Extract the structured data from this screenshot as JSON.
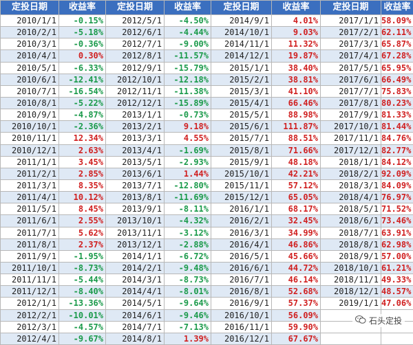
{
  "headers": [
    "定投日期",
    "收益率",
    "定投日期",
    "收益率",
    "定投日期",
    "收益率",
    "定投日期",
    "收益率"
  ],
  "columns": [
    [
      [
        "2010/1/1",
        "-0.15%"
      ],
      [
        "2010/2/1",
        "-5.18%"
      ],
      [
        "2010/3/1",
        "-0.36%"
      ],
      [
        "2010/4/1",
        "0.30%"
      ],
      [
        "2010/5/1",
        "-6.33%"
      ],
      [
        "2010/6/1",
        "-12.41%"
      ],
      [
        "2010/7/1",
        "-16.54%"
      ],
      [
        "2010/8/1",
        "-5.22%"
      ],
      [
        "2010/9/1",
        "-4.87%"
      ],
      [
        "2010/10/1",
        "-2.36%"
      ],
      [
        "2010/11/1",
        "12.34%"
      ],
      [
        "2010/12/1",
        "2.63%"
      ],
      [
        "2011/1/1",
        "3.45%"
      ],
      [
        "2011/2/1",
        "2.85%"
      ],
      [
        "2011/3/1",
        "8.35%"
      ],
      [
        "2011/4/1",
        "10.12%"
      ],
      [
        "2011/5/1",
        "8.45%"
      ],
      [
        "2011/6/1",
        "2.55%"
      ],
      [
        "2011/7/1",
        "5.62%"
      ],
      [
        "2011/8/1",
        "2.37%"
      ],
      [
        "2011/9/1",
        "-1.95%"
      ],
      [
        "2011/10/1",
        "-8.73%"
      ],
      [
        "2011/11/1",
        "-5.44%"
      ],
      [
        "2011/12/1",
        "-8.40%"
      ],
      [
        "2012/1/1",
        "-13.36%"
      ],
      [
        "2012/2/1",
        "-10.01%"
      ],
      [
        "2012/3/1",
        "-4.57%"
      ],
      [
        "2012/4/1",
        "-9.67%"
      ]
    ],
    [
      [
        "2012/5/1",
        "-4.50%"
      ],
      [
        "2012/6/1",
        "-4.44%"
      ],
      [
        "2012/7/1",
        "-9.00%"
      ],
      [
        "2012/8/1",
        "-11.57%"
      ],
      [
        "2012/9/1",
        "-15.79%"
      ],
      [
        "2012/10/1",
        "-12.18%"
      ],
      [
        "2012/11/1",
        "-11.38%"
      ],
      [
        "2012/12/1",
        "-15.89%"
      ],
      [
        "2013/1/1",
        "-0.73%"
      ],
      [
        "2013/2/1",
        "9.18%"
      ],
      [
        "2013/3/1",
        "4.55%"
      ],
      [
        "2013/4/1",
        "-1.69%"
      ],
      [
        "2013/5/1",
        "-2.93%"
      ],
      [
        "2013/6/1",
        "1.44%"
      ],
      [
        "2013/7/1",
        "-12.80%"
      ],
      [
        "2013/8/1",
        "-11.69%"
      ],
      [
        "2013/9/1",
        "-8.11%"
      ],
      [
        "2013/10/1",
        "-4.32%"
      ],
      [
        "2013/11/1",
        "-3.12%"
      ],
      [
        "2013/12/1",
        "-2.88%"
      ],
      [
        "2014/1/1",
        "-6.72%"
      ],
      [
        "2014/2/1",
        "-9.48%"
      ],
      [
        "2014/3/1",
        "-8.73%"
      ],
      [
        "2014/4/1",
        "-8.01%"
      ],
      [
        "2014/5/1",
        "-9.64%"
      ],
      [
        "2014/6/1",
        "-9.46%"
      ],
      [
        "2014/7/1",
        "-7.13%"
      ],
      [
        "2014/8/1",
        "1.39%"
      ]
    ],
    [
      [
        "2014/9/1",
        "4.01%"
      ],
      [
        "2014/10/1",
        "9.03%"
      ],
      [
        "2014/11/1",
        "11.32%"
      ],
      [
        "2014/12/1",
        "19.87%"
      ],
      [
        "2015/1/1",
        "38.40%"
      ],
      [
        "2015/2/1",
        "38.81%"
      ],
      [
        "2015/3/1",
        "41.10%"
      ],
      [
        "2015/4/1",
        "66.46%"
      ],
      [
        "2015/5/1",
        "88.98%"
      ],
      [
        "2015/6/1",
        "111.87%"
      ],
      [
        "2015/7/1",
        "88.51%"
      ],
      [
        "2015/8/1",
        "71.66%"
      ],
      [
        "2015/9/1",
        "48.18%"
      ],
      [
        "2015/10/1",
        "42.21%"
      ],
      [
        "2015/11/1",
        "57.12%"
      ],
      [
        "2015/12/1",
        "65.05%"
      ],
      [
        "2016/1/1",
        "68.17%"
      ],
      [
        "2016/2/1",
        "32.45%"
      ],
      [
        "2016/3/1",
        "34.99%"
      ],
      [
        "2016/4/1",
        "46.86%"
      ],
      [
        "2016/5/1",
        "45.66%"
      ],
      [
        "2016/6/1",
        "44.72%"
      ],
      [
        "2016/7/1",
        "46.14%"
      ],
      [
        "2016/8/1",
        "52.68%"
      ],
      [
        "2016/9/1",
        "57.37%"
      ],
      [
        "2016/10/1",
        "56.09%"
      ],
      [
        "2016/11/1",
        "59.90%"
      ],
      [
        "2016/12/1",
        "67.67%"
      ]
    ],
    [
      [
        "2017/1/1",
        "58.09%"
      ],
      [
        "2017/2/1",
        "62.11%"
      ],
      [
        "2017/3/1",
        "65.87%"
      ],
      [
        "2017/4/1",
        "67.28%"
      ],
      [
        "2017/5/1",
        "65.95%"
      ],
      [
        "2017/6/1",
        "66.49%"
      ],
      [
        "2017/7/1",
        "75.83%"
      ],
      [
        "2017/8/1",
        "80.23%"
      ],
      [
        "2017/9/1",
        "81.33%"
      ],
      [
        "2017/10/1",
        "81.44%"
      ],
      [
        "2017/11/1",
        "84.76%"
      ],
      [
        "2017/12/1",
        "82.77%"
      ],
      [
        "2018/1/1",
        "84.12%"
      ],
      [
        "2018/2/1",
        "92.09%"
      ],
      [
        "2018/3/1",
        "84.09%"
      ],
      [
        "2018/4/1",
        "76.97%"
      ],
      [
        "2018/5/1",
        "71.52%"
      ],
      [
        "2018/6/1",
        "73.46%"
      ],
      [
        "2018/7/1",
        "63.91%"
      ],
      [
        "2018/8/1",
        "62.98%"
      ],
      [
        "2018/9/1",
        "57.00%"
      ],
      [
        "2018/10/1",
        "61.21%"
      ],
      [
        "2018/11/1",
        "49.33%"
      ],
      [
        "2018/12/1",
        "48.57%"
      ],
      [
        "2019/1/1",
        "47.06%"
      ],
      [
        "",
        ""
      ],
      [
        "",
        ""
      ],
      [
        "",
        ""
      ]
    ]
  ],
  "watermark": {
    "text": "石头定投",
    "icon": "wechat-icon"
  }
}
